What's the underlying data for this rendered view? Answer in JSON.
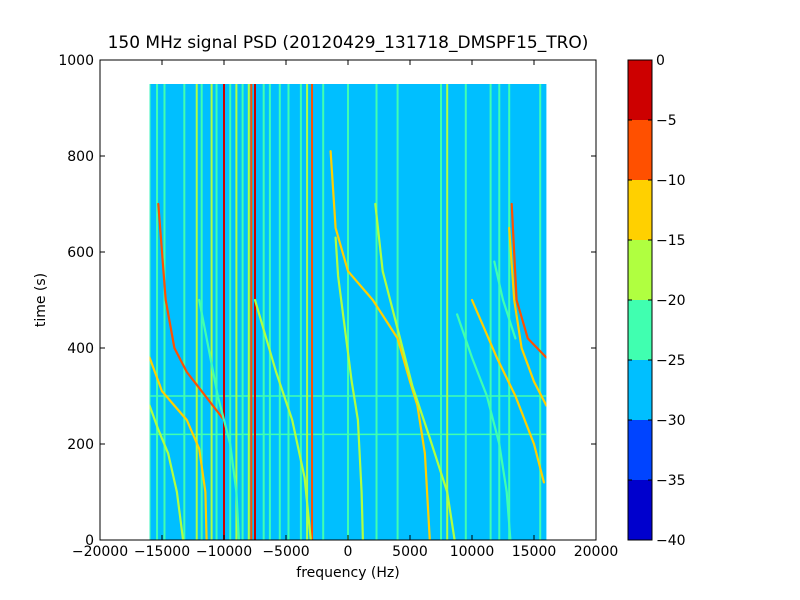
{
  "chart_data": {
    "type": "heatmap",
    "title": "150 MHz signal PSD (20120429_131718_DMSPF15_TRO)",
    "xlabel": "frequency (Hz)",
    "ylabel": "time (s)",
    "xlim": [
      -20000,
      20000
    ],
    "ylim": [
      0,
      1000
    ],
    "x_ticks": [
      -20000,
      -15000,
      -10000,
      -5000,
      0,
      5000,
      10000,
      15000,
      20000
    ],
    "x_tick_labels": [
      "−20000",
      "−15000",
      "−10000",
      "−5000",
      "0",
      "5000",
      "10000",
      "15000",
      "20000"
    ],
    "y_ticks": [
      0,
      200,
      400,
      600,
      800,
      1000
    ],
    "y_tick_labels": [
      "0",
      "200",
      "400",
      "600",
      "800",
      "1000"
    ],
    "data_extent": {
      "freq_min": -16000,
      "freq_max": 16000,
      "time_min": 0,
      "time_max": 950
    },
    "background_level": -27.5,
    "colorbar": {
      "levels": [
        -40,
        -35,
        -30,
        -25,
        -20,
        -15,
        -10,
        -5,
        0
      ],
      "tick_labels": [
        "−40",
        "−35",
        "−30",
        "−25",
        "−20",
        "−15",
        "−10",
        "−5",
        "0"
      ],
      "colors": [
        "#0000cd",
        "#0044ff",
        "#00bfff",
        "#40ffb0",
        "#b0ff40",
        "#ffd000",
        "#ff5000",
        "#cd0000"
      ]
    },
    "vertical_lines": [
      {
        "freq": -16000,
        "level": -22
      },
      {
        "freq": -15400,
        "level": -22
      },
      {
        "freq": -14800,
        "level": -22
      },
      {
        "freq": -13200,
        "level": -22
      },
      {
        "freq": -12200,
        "level": -17
      },
      {
        "freq": -11800,
        "level": -22
      },
      {
        "freq": -11000,
        "level": -17
      },
      {
        "freq": -10600,
        "level": -22
      },
      {
        "freq": -10000,
        "level": -2
      },
      {
        "freq": -9500,
        "level": -22
      },
      {
        "freq": -9000,
        "level": -17
      },
      {
        "freq": -8500,
        "level": -22
      },
      {
        "freq": -8000,
        "level": -17
      },
      {
        "freq": -7800,
        "level": -7
      },
      {
        "freq": -7500,
        "level": -2
      },
      {
        "freq": -6800,
        "level": -22
      },
      {
        "freq": -6300,
        "level": -22
      },
      {
        "freq": -5500,
        "level": -22
      },
      {
        "freq": -4800,
        "level": -22
      },
      {
        "freq": -3800,
        "level": -22
      },
      {
        "freq": -3300,
        "level": -17
      },
      {
        "freq": -2900,
        "level": -7
      },
      {
        "freq": -2000,
        "level": -22
      },
      {
        "freq": 0,
        "level": -22
      },
      {
        "freq": 2300,
        "level": -22
      },
      {
        "freq": 4000,
        "level": -22
      },
      {
        "freq": 7500,
        "level": -22
      },
      {
        "freq": 8000,
        "level": -17
      },
      {
        "freq": 9500,
        "level": -22
      },
      {
        "freq": 11500,
        "level": -22
      },
      {
        "freq": 12200,
        "level": -22
      },
      {
        "freq": 13000,
        "level": -22
      },
      {
        "freq": 15500,
        "level": -22
      }
    ],
    "horizontal_lines": [
      {
        "time": 220,
        "level": -22
      },
      {
        "time": 300,
        "level": -22
      }
    ],
    "doppler_tracks": [
      {
        "level": -7,
        "points": [
          [
            -15300,
            700
          ],
          [
            -14700,
            500
          ],
          [
            -14000,
            400
          ],
          [
            -13000,
            350
          ],
          [
            -11500,
            300
          ],
          [
            -10000,
            250
          ]
        ]
      },
      {
        "level": -12,
        "points": [
          [
            -16000,
            380
          ],
          [
            -15000,
            310
          ],
          [
            -14000,
            280
          ],
          [
            -13000,
            250
          ],
          [
            -12000,
            190
          ],
          [
            -11500,
            100
          ],
          [
            -11400,
            0
          ]
        ]
      },
      {
        "level": -17,
        "points": [
          [
            -16000,
            280
          ],
          [
            -15300,
            230
          ],
          [
            -14500,
            180
          ],
          [
            -13800,
            100
          ],
          [
            -13300,
            0
          ]
        ]
      },
      {
        "level": -22,
        "points": [
          [
            -12000,
            500
          ],
          [
            -10500,
            300
          ],
          [
            -9500,
            200
          ],
          [
            -9000,
            100
          ],
          [
            -8800,
            0
          ]
        ]
      },
      {
        "level": -17,
        "points": [
          [
            -7500,
            500
          ],
          [
            -5800,
            350
          ],
          [
            -4500,
            250
          ],
          [
            -3500,
            130
          ],
          [
            -3000,
            0
          ]
        ]
      },
      {
        "level": -17,
        "points": [
          [
            -1000,
            630
          ],
          [
            -800,
            550
          ],
          [
            -300,
            450
          ],
          [
            300,
            330
          ],
          [
            800,
            250
          ],
          [
            1100,
            100
          ],
          [
            1200,
            0
          ]
        ]
      },
      {
        "level": -12,
        "points": [
          [
            -1400,
            810
          ],
          [
            -1000,
            650
          ],
          [
            0,
            560
          ],
          [
            2000,
            500
          ],
          [
            4000,
            420
          ],
          [
            5000,
            330
          ],
          [
            5600,
            280
          ],
          [
            6200,
            180
          ],
          [
            6600,
            0
          ]
        ]
      },
      {
        "level": -17,
        "points": [
          [
            2200,
            700
          ],
          [
            2800,
            560
          ],
          [
            4000,
            440
          ],
          [
            5200,
            320
          ],
          [
            6500,
            220
          ],
          [
            8000,
            100
          ],
          [
            8600,
            0
          ]
        ]
      },
      {
        "level": -12,
        "points": [
          [
            10000,
            500
          ],
          [
            12000,
            380
          ],
          [
            13500,
            300
          ],
          [
            15000,
            200
          ],
          [
            15800,
            120
          ]
        ]
      },
      {
        "level": -22,
        "points": [
          [
            8800,
            470
          ],
          [
            10000,
            380
          ],
          [
            11200,
            300
          ],
          [
            12200,
            200
          ],
          [
            12800,
            100
          ],
          [
            13100,
            0
          ]
        ]
      },
      {
        "level": -7,
        "points": [
          [
            13200,
            700
          ],
          [
            13600,
            500
          ],
          [
            14500,
            420
          ],
          [
            16000,
            380
          ]
        ]
      },
      {
        "level": -12,
        "points": [
          [
            13000,
            650
          ],
          [
            13400,
            500
          ],
          [
            14000,
            400
          ],
          [
            15000,
            330
          ],
          [
            16000,
            280
          ]
        ]
      },
      {
        "level": -22,
        "points": [
          [
            11800,
            580
          ],
          [
            12500,
            500
          ],
          [
            13500,
            420
          ]
        ]
      }
    ]
  }
}
